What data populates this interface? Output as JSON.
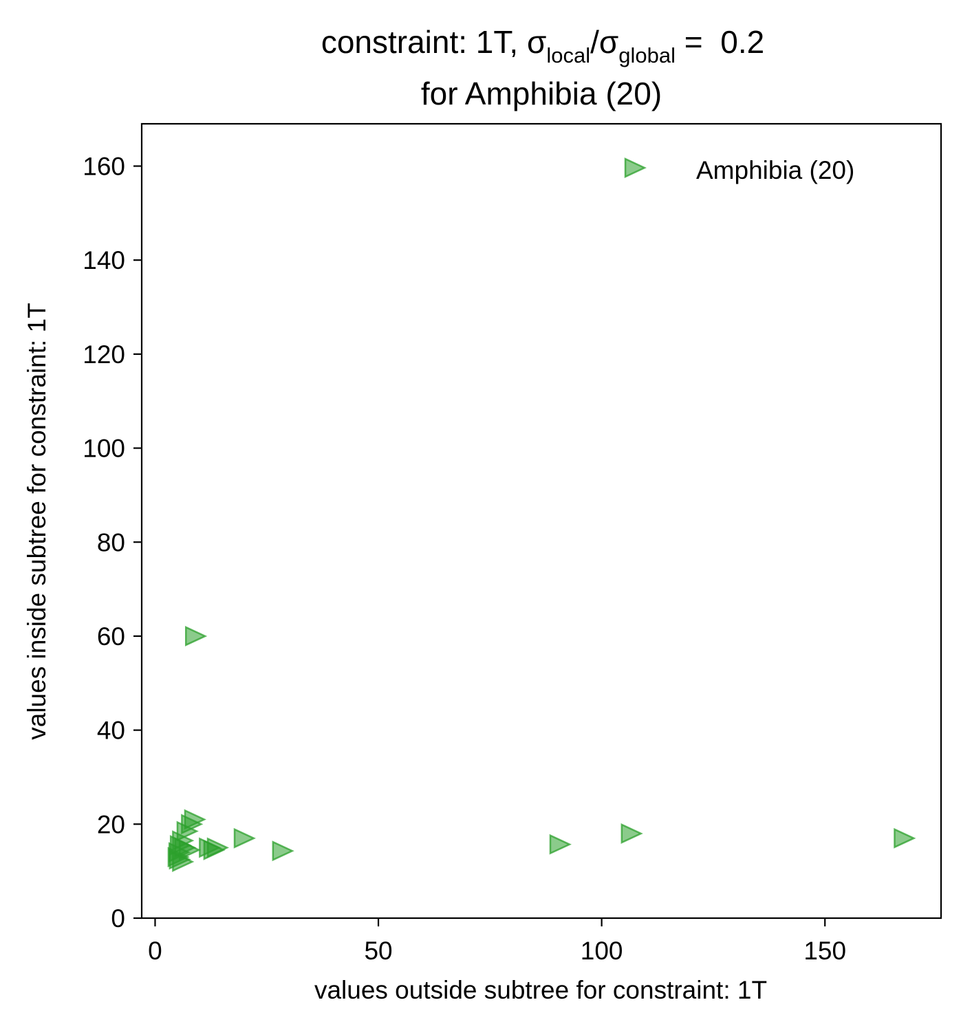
{
  "chart_data": {
    "type": "scatter",
    "title": {
      "prefix": "constraint: 1T, σ",
      "sub1": "local",
      "mid": "/σ",
      "sub2": "global",
      "suffix": " =  0.2",
      "line2": "for Amphibia (20)"
    },
    "xlabel": "values outside subtree for constraint: 1T",
    "ylabel": "values inside subtree for constraint: 1T",
    "xlim": [
      -3,
      176
    ],
    "ylim": [
      0,
      169
    ],
    "xticks": [
      0,
      50,
      100,
      150
    ],
    "yticks": [
      0,
      20,
      40,
      60,
      80,
      100,
      120,
      140,
      160
    ],
    "grid": false,
    "legend_position": "upper right",
    "series": [
      {
        "name": "Amphibia (20)",
        "marker": "triangle-right",
        "color": "#2ca02c",
        "points": [
          [
            8.9,
            60.0
          ],
          [
            8.7,
            21.0
          ],
          [
            8.0,
            20.0
          ],
          [
            7.0,
            18.5
          ],
          [
            6.0,
            16.5
          ],
          [
            5.5,
            15.5
          ],
          [
            6.5,
            15.0
          ],
          [
            5.2,
            14.0
          ],
          [
            5.0,
            13.0
          ],
          [
            5.3,
            12.5
          ],
          [
            6.0,
            12.0
          ],
          [
            7.5,
            14.5
          ],
          [
            12.0,
            15.0
          ],
          [
            13.0,
            14.5
          ],
          [
            13.8,
            15.0
          ],
          [
            19.8,
            17.0
          ],
          [
            28.4,
            14.3
          ],
          [
            90.5,
            15.7
          ],
          [
            106.5,
            18.0
          ],
          [
            167.6,
            17.0
          ]
        ]
      }
    ]
  }
}
